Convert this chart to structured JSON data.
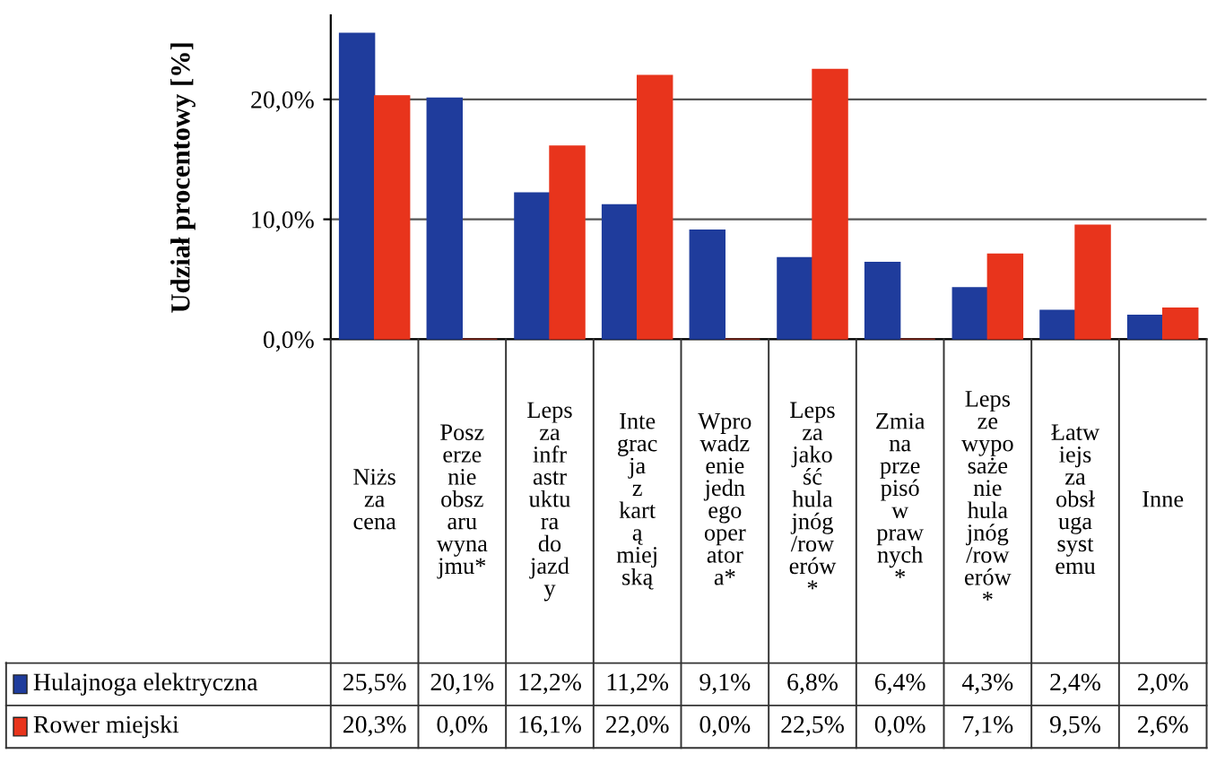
{
  "chart_data": {
    "type": "bar",
    "ylabel": "Udział procentowy [%]",
    "categories": [
      "Niższa cena",
      "Poszerzenie obszaru wynajmu*",
      "Lepsza infrastruktura do jazdy",
      "Integracja z kartą miejską",
      "Wprowadzenie jednego operatora*",
      "Lepsza jakość hulajnóg /rowerów*",
      "Zmiana przepisów prawnych*",
      "Lepsze wyposażenie hulajnóg /rowerów*",
      "Łatwiejsza obsługa systemu",
      "Inne"
    ],
    "series": [
      {
        "name": "Hulajnoga elektryczna",
        "color": "#1f3c9c",
        "values": [
          25.5,
          20.1,
          12.2,
          11.2,
          9.1,
          6.8,
          6.4,
          4.3,
          2.4,
          2.0
        ],
        "value_labels": [
          "25,5%",
          "20,1%",
          "12,2%",
          "11,2%",
          "9,1%",
          "6,8%",
          "6,4%",
          "4,3%",
          "2,4%",
          "2,0%"
        ]
      },
      {
        "name": "Rower miejski",
        "color": "#e8341c",
        "values": [
          20.3,
          0.0,
          16.1,
          22.0,
          0.0,
          22.5,
          0.0,
          7.1,
          9.5,
          2.6
        ],
        "value_labels": [
          "20,3%",
          "0,0%",
          "16,1%",
          "22,0%",
          "0,0%",
          "22,5%",
          "0,0%",
          "7,1%",
          "9,5%",
          "2,6%"
        ]
      }
    ],
    "ylim": [
      0,
      27
    ],
    "yticks": [
      {
        "value": 0,
        "label": "0,0%"
      },
      {
        "value": 10,
        "label": "10,0%"
      },
      {
        "value": 20,
        "label": "20,0%"
      }
    ],
    "grid": "y",
    "legend": "bottom left"
  }
}
